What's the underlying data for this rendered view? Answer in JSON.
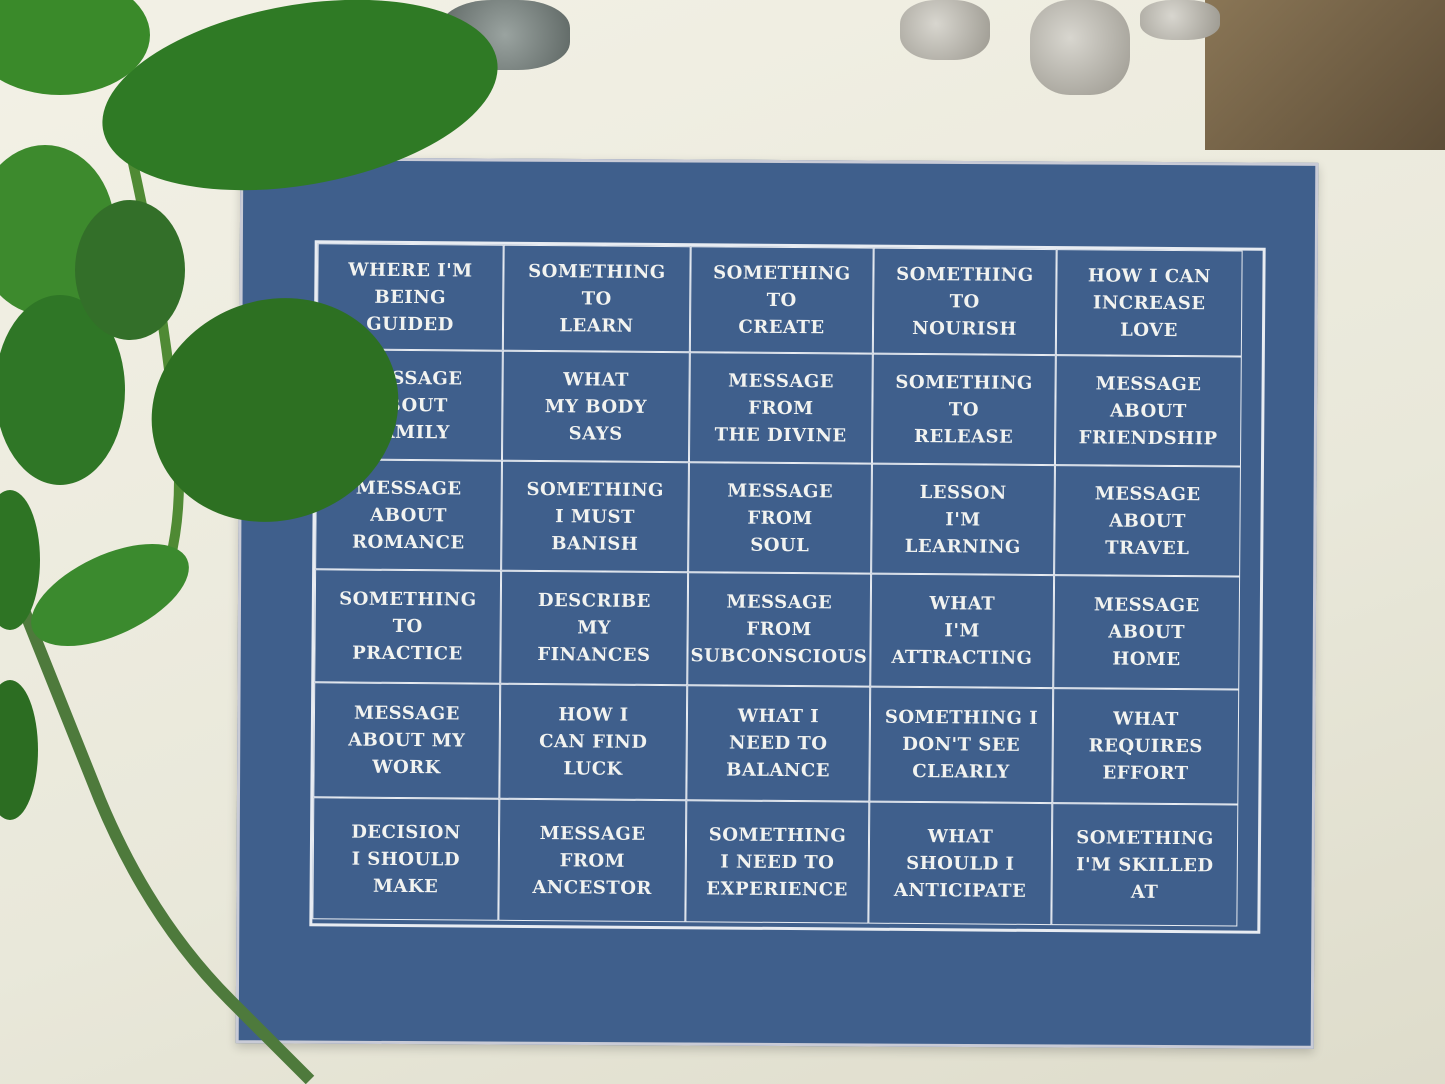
{
  "spread_cloth": {
    "rows": [
      [
        "WHERE I'M\nBEING\nGUIDED",
        "SOMETHING\nTO\nLEARN",
        "SOMETHING\nTO\nCREATE",
        "SOMETHING\nTO\nNOURISH",
        "HOW I CAN\nINCREASE\nLOVE"
      ],
      [
        "MESSAGE\nABOUT\nFAMILY",
        "WHAT\nMY BODY\nSAYS",
        "MESSAGE\nFROM\nTHE DIVINE",
        "SOMETHING\nTO\nRELEASE",
        "MESSAGE\nABOUT\nFRIENDSHIP"
      ],
      [
        "MESSAGE\nABOUT\nROMANCE",
        "SOMETHING\nI MUST\nBANISH",
        "MESSAGE\nFROM\nSOUL",
        "LESSON\nI'M\nLEARNING",
        "MESSAGE\nABOUT\nTRAVEL"
      ],
      [
        "SOMETHING\nTO\nPRACTICE",
        "DESCRIBE\nMY\nFINANCES",
        "MESSAGE\nFROM\nSUBCONSCIOUS",
        "WHAT\nI'M\nATTRACTING",
        "MESSAGE\nABOUT\nHOME"
      ],
      [
        "MESSAGE\nABOUT MY\nWORK",
        "HOW I\nCAN FIND\nLUCK",
        "WHAT I\nNEED TO\nBALANCE",
        "SOMETHING I\nDON'T SEE\nCLEARLY",
        "WHAT\nREQUIRES\nEFFORT"
      ],
      [
        "DECISION\nI SHOULD\nMAKE",
        "MESSAGE\nFROM\nANCESTOR",
        "SOMETHING\nI NEED TO\nEXPERIENCE",
        "WHAT\nSHOULD I\nANTICIPATE",
        "SOMETHING\nI'M SKILLED\nAT"
      ]
    ]
  },
  "colors": {
    "cloth": "#3f5f8c",
    "text": "#f2f3f0",
    "background": "#ecebdd",
    "leaf": "#2f7a25"
  }
}
